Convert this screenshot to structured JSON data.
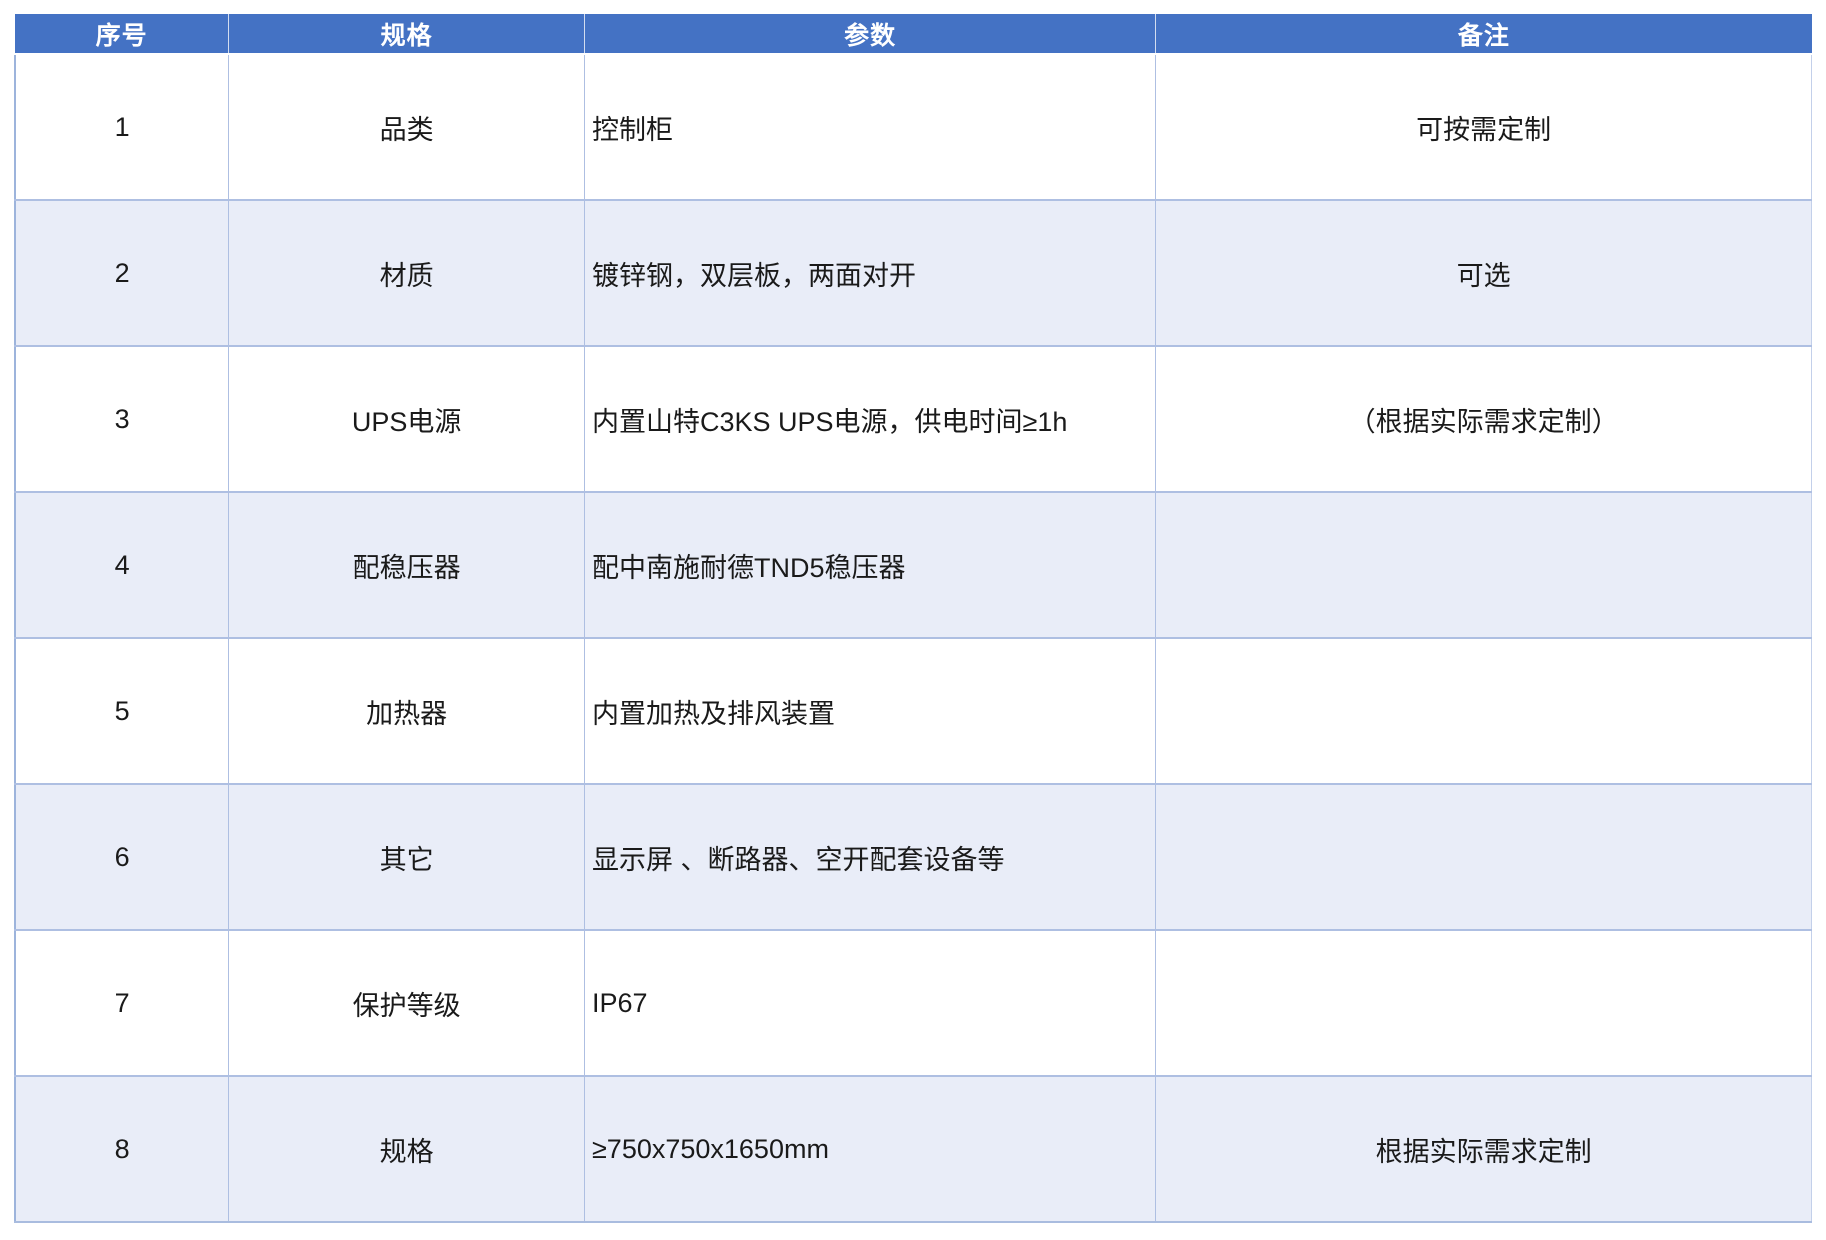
{
  "table": {
    "headers": {
      "index": "序号",
      "spec": "规格",
      "param": "参数",
      "remark": "备注"
    },
    "rows": [
      {
        "index": "1",
        "spec": "品类",
        "param": "控制柜",
        "remark": "可按需定制"
      },
      {
        "index": "2",
        "spec": "材质",
        "param": "镀锌钢，双层板，两面对开",
        "remark": "可选"
      },
      {
        "index": "3",
        "spec": "UPS电源",
        "param": "内置山特C3KS UPS电源，供电时间≥1h",
        "remark": "（根据实际需求定制）"
      },
      {
        "index": "4",
        "spec": "配稳压器",
        "param": "配中南施耐德TND5稳压器",
        "remark": ""
      },
      {
        "index": "5",
        "spec": "加热器",
        "param": "内置加热及排风装置",
        "remark": ""
      },
      {
        "index": "6",
        "spec": "其它",
        "param": "显示屏 、断路器、空开配套设备等",
        "remark": ""
      },
      {
        "index": "7",
        "spec": "保护等级",
        "param": "IP67",
        "remark": ""
      },
      {
        "index": "8",
        "spec": "规格",
        "param": "≥750x750x1650mm",
        "remark": "根据实际需求定制"
      }
    ],
    "colors": {
      "header_bg": "#4472c4",
      "header_text": "#ffffff",
      "stripe_bg": "#e9edf8",
      "border": "#aebfe2"
    }
  }
}
